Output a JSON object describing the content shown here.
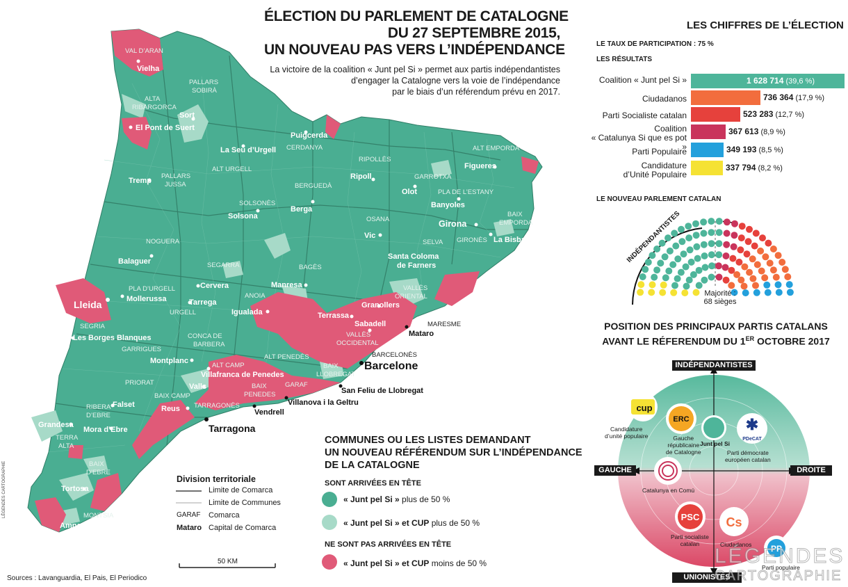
{
  "title": {
    "line1": "ÉLECTION DU PARLEMENT DE CATALOGNE",
    "line2": "DU 27 SEPTEMBRE 2015,",
    "line3": "UN NOUVEAU PAS VERS L’INDÉPENDANCE"
  },
  "subtitle": {
    "line1": "La victoire de la coalition « Junt pel Si » permet aux partis indépendantistes",
    "line2": "d’engager la Catalogne vers la voie de l’indépendance",
    "line3": "par le biais d’un référendum prévu en 2017."
  },
  "colors": {
    "map_green": "#4aae92",
    "light_green": "#a7dac8",
    "pink": "#e05a78",
    "junts": "#4eb59a",
    "cs": "#f26d3d",
    "psc": "#e6413c",
    "csqp": "#c9345c",
    "pp": "#23a0dc",
    "cup": "#f5e234"
  },
  "map": {
    "cities": [
      {
        "name": "Vielha"
      },
      {
        "name": "Sort"
      },
      {
        "name": "El Pont de Suert"
      },
      {
        "name": "La Seu d’Urgell"
      },
      {
        "name": "Puigcerda"
      },
      {
        "name": "Tremp"
      },
      {
        "name": "Ripoll"
      },
      {
        "name": "Olot"
      },
      {
        "name": "Figueres"
      },
      {
        "name": "Berga"
      },
      {
        "name": "Solsona"
      },
      {
        "name": "Banyoles"
      },
      {
        "name": "Girona"
      },
      {
        "name": "La Bisbal"
      },
      {
        "name": "Vic"
      },
      {
        "name": "Balaguer"
      },
      {
        "name": "Santa Coloma"
      },
      {
        "name": "de Farners"
      },
      {
        "name": "Lleida"
      },
      {
        "name": "Mollerussa"
      },
      {
        "name": "Cervera"
      },
      {
        "name": "Tarrega"
      },
      {
        "name": "Manresa"
      },
      {
        "name": "Igualada"
      },
      {
        "name": "Granollers"
      },
      {
        "name": "Terrassa"
      },
      {
        "name": "Sabadell"
      },
      {
        "name": "Les Borges Blanques"
      },
      {
        "name": "Montplanc"
      },
      {
        "name": "Valls"
      },
      {
        "name": "Villafranca de Penedes"
      },
      {
        "name": "Reus"
      },
      {
        "name": "Falset"
      },
      {
        "name": "Mora d’Ebre"
      },
      {
        "name": "Grandesa"
      },
      {
        "name": "Tortosa"
      },
      {
        "name": "Amposta"
      }
    ],
    "comarques": [
      "VAL D’ARAN",
      "PALLARS",
      "SOBIRÀ",
      "ALTA",
      "RIBARGORCA",
      "CERDANYA",
      "RIPOLLÈS",
      "ALT EMPORDA",
      "ALT URGELL",
      "PALLARS",
      "JUSSA",
      "GARROTXA",
      "BERGUEDÀ",
      "PLA DE L’ESTANY",
      "BAIX",
      "EMPORDA",
      "SOLSONÈS",
      "OSANA",
      "NOGUERA",
      "SELVA",
      "GIRONÈS",
      "SEGARRA",
      "BAGÈS",
      "PLA D’URGELL",
      "ANOIA",
      "VALLÈS",
      "ORIENTAL",
      "URGELL",
      "SEGRIA",
      "CONCA DE",
      "BARBERA",
      "GARRIGUES",
      "VALLÈS",
      "OCCIDENTAL",
      "ALT CAMP",
      "ALT PENEDÈS",
      "BARCELONÈS",
      "BAIX",
      "LLOBREGAT",
      "PRIORAT",
      "BAIX",
      "PENEDES",
      "GARAF",
      "BAIX CAMP",
      "TARRAGONÈS",
      "RIBERA",
      "D’EBRE",
      "TERRA",
      "ALTA",
      "BAIX",
      "D’EBRE",
      "MONTSIA",
      "MARESME"
    ],
    "outside_cities": [
      {
        "name": "Mataro"
      },
      {
        "name": "Barcelone"
      },
      {
        "name": "San Feliu de Llobregat"
      },
      {
        "name": "Villanova i la Geltru"
      },
      {
        "name": "Vendrell"
      },
      {
        "name": "Tarragona"
      }
    ]
  },
  "division": {
    "title": "Division territoriale",
    "items": [
      {
        "key": "",
        "label": "Limite de Comarca"
      },
      {
        "key": "",
        "label": "Limite de Communes"
      },
      {
        "key": "GARAF",
        "label": "Comarca"
      },
      {
        "key": "Mataro",
        "label": "Capital de Comarca"
      }
    ],
    "scale": "50 KM"
  },
  "communes_legend": {
    "title1": "COMMUNES OU LES LISTES DEMANDANT",
    "title2": "UN  NOUVEAU RÉFÉRENDUM SUR L’INDÉPENDANCE",
    "title3": "DE LA CATALOGNE",
    "sub1": "SONT ARRIVÉES EN TÊTE",
    "item1_a": "« Junt pel Si »",
    "item1_b": "plus de  50 %",
    "item2_a": "« Junt pel Si » et CUP",
    "item2_b": "plus de 50 %",
    "sub2": "NE SONT PAS ARRIVÉES EN TÊTE",
    "item3_a": "« Junt pel Si » et CUP",
    "item3_b": "moins de 50 %"
  },
  "sources": "Sources : Lavanguardia, El Pais, El Periodico",
  "credit_vertical": "LÉGENDES CARTOGRAPHIE",
  "watermark": {
    "line1": "LÉGENDES",
    "line2": "CARTOGRAPHIE"
  },
  "chiffres": {
    "title": "LES CHIFFRES DE L’ÉLECTION",
    "participation": "LE TAUX DE PARTICIPATION : 75 %",
    "resultats": "LES RÉSULTATS",
    "results": [
      {
        "label": "Coalition « Junt pel Si »",
        "label2": "",
        "votes": "1 628 714",
        "pct": "(39,6 %)",
        "value": 1628714,
        "color": "#4eb59a"
      },
      {
        "label": "Ciudadanos",
        "label2": "",
        "votes": "736 364",
        "pct": "(17,9 %)",
        "value": 736364,
        "color": "#f26d3d"
      },
      {
        "label": "Parti Socialiste catalan",
        "label2": "",
        "votes": "523 283",
        "pct": "(12,7 %)",
        "value": 523283,
        "color": "#e6413c"
      },
      {
        "label": "Coalition",
        "label2": "« Catalunya Si que es pot »",
        "votes": "367 613",
        "pct": "(8,9 %)",
        "value": 367613,
        "color": "#c9345c"
      },
      {
        "label": "Parti Populaire",
        "label2": "",
        "votes": "349 193",
        "pct": "(8,5 %)",
        "value": 349193,
        "color": "#23a0dc"
      },
      {
        "label": "Candidature",
        "label2": "d’Unité Populaire",
        "votes": "337 794",
        "pct": "(8,2 %)",
        "value": 337794,
        "color": "#f5e234"
      }
    ]
  },
  "parlement": {
    "title": "LE NOUVEAU PARLEMENT CATALAN",
    "arc_label": "INDÉPENDANTISTES",
    "majority1": "Majorité :",
    "majority2": "68 sièges",
    "seats": [
      {
        "party": "CUP",
        "count": 10,
        "color": "#f5e234"
      },
      {
        "party": "Junts pel Si",
        "count": 62,
        "color": "#4eb59a"
      },
      {
        "party": "CSQP",
        "count": 11,
        "color": "#c9345c"
      },
      {
        "party": "PSC",
        "count": 16,
        "color": "#e6413c"
      },
      {
        "party": "Ciudadanos",
        "count": 25,
        "color": "#f26d3d"
      },
      {
        "party": "PP",
        "count": 11,
        "color": "#23a0dc"
      }
    ]
  },
  "position": {
    "title1": "POSITION DES PRINCIPAUX PARTIS CATALANS",
    "title2a": "AVANT LE RÉFERENDUM DU 1",
    "title2sup": "ER",
    "title2b": " OCTOBRE 2017",
    "top": "INDÉPENDANTISTES",
    "bottom": "UNIONISTES",
    "left": "GAUCHE",
    "right": "DROITE",
    "parties": [
      {
        "logo": "CUP",
        "l1": "Candidature",
        "l2": "d’unité populaire"
      },
      {
        "logo": "ERC",
        "l1": "Gauche",
        "l2": "républicaine",
        "l3": "de Catalogne"
      },
      {
        "logo": "",
        "l1": "Junt pel Si"
      },
      {
        "logo": "PDeCAT",
        "l1": "Parti démocrate",
        "l2": "européen catalan"
      },
      {
        "logo": "",
        "l1": "Catalunya en Comú"
      },
      {
        "logo": "PSC",
        "l1": "Parti socialiste",
        "l2": "catalan"
      },
      {
        "logo": "Cs",
        "l1": "Ciudadanos"
      },
      {
        "logo": "PP",
        "l1": "Parti populaire"
      }
    ]
  }
}
